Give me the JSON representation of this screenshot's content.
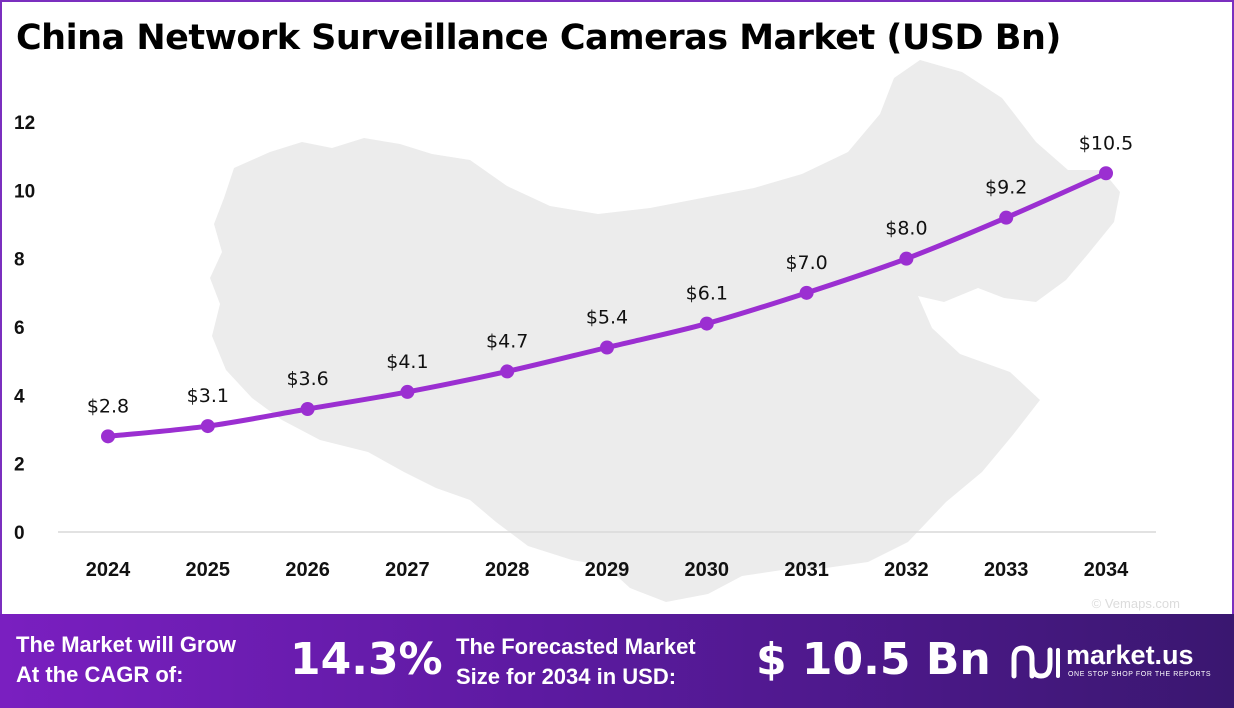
{
  "title": "China Network Surveillance Cameras Market (USD Bn)",
  "chart_data": {
    "type": "line",
    "x": [
      "2024",
      "2025",
      "2026",
      "2027",
      "2028",
      "2029",
      "2030",
      "2031",
      "2032",
      "2033",
      "2034"
    ],
    "values": [
      2.8,
      3.1,
      3.6,
      4.1,
      4.7,
      5.4,
      6.1,
      7.0,
      8.0,
      9.2,
      10.5
    ],
    "data_labels": [
      "$2.8",
      "$3.1",
      "$3.6",
      "$4.1",
      "$4.7",
      "$5.4",
      "$6.1",
      "$7.0",
      "$8.0",
      "$9.2",
      "$10.5"
    ],
    "yticks": [
      "0",
      "2",
      "4",
      "6",
      "8",
      "10",
      "12"
    ],
    "ylim": [
      0,
      12
    ],
    "grid": false,
    "legend": "none",
    "line_color": "#9b2fd1",
    "background_map_color": "#ececec"
  },
  "watermark": "© Vemaps.com",
  "banner": {
    "cagr_label_line1": "The Market will Grow",
    "cagr_label_line2": "At the CAGR of:",
    "cagr_value": "14.3%",
    "size_label_line1": "The Forecasted Market",
    "size_label_line2": "Size for 2034 in USD:",
    "size_value": "$ 10.5 Bn",
    "brand_name": "market.us",
    "brand_tagline": "ONE STOP SHOP FOR THE REPORTS",
    "gradient_colors": [
      "#7a1fc0",
      "#3a1770"
    ]
  }
}
